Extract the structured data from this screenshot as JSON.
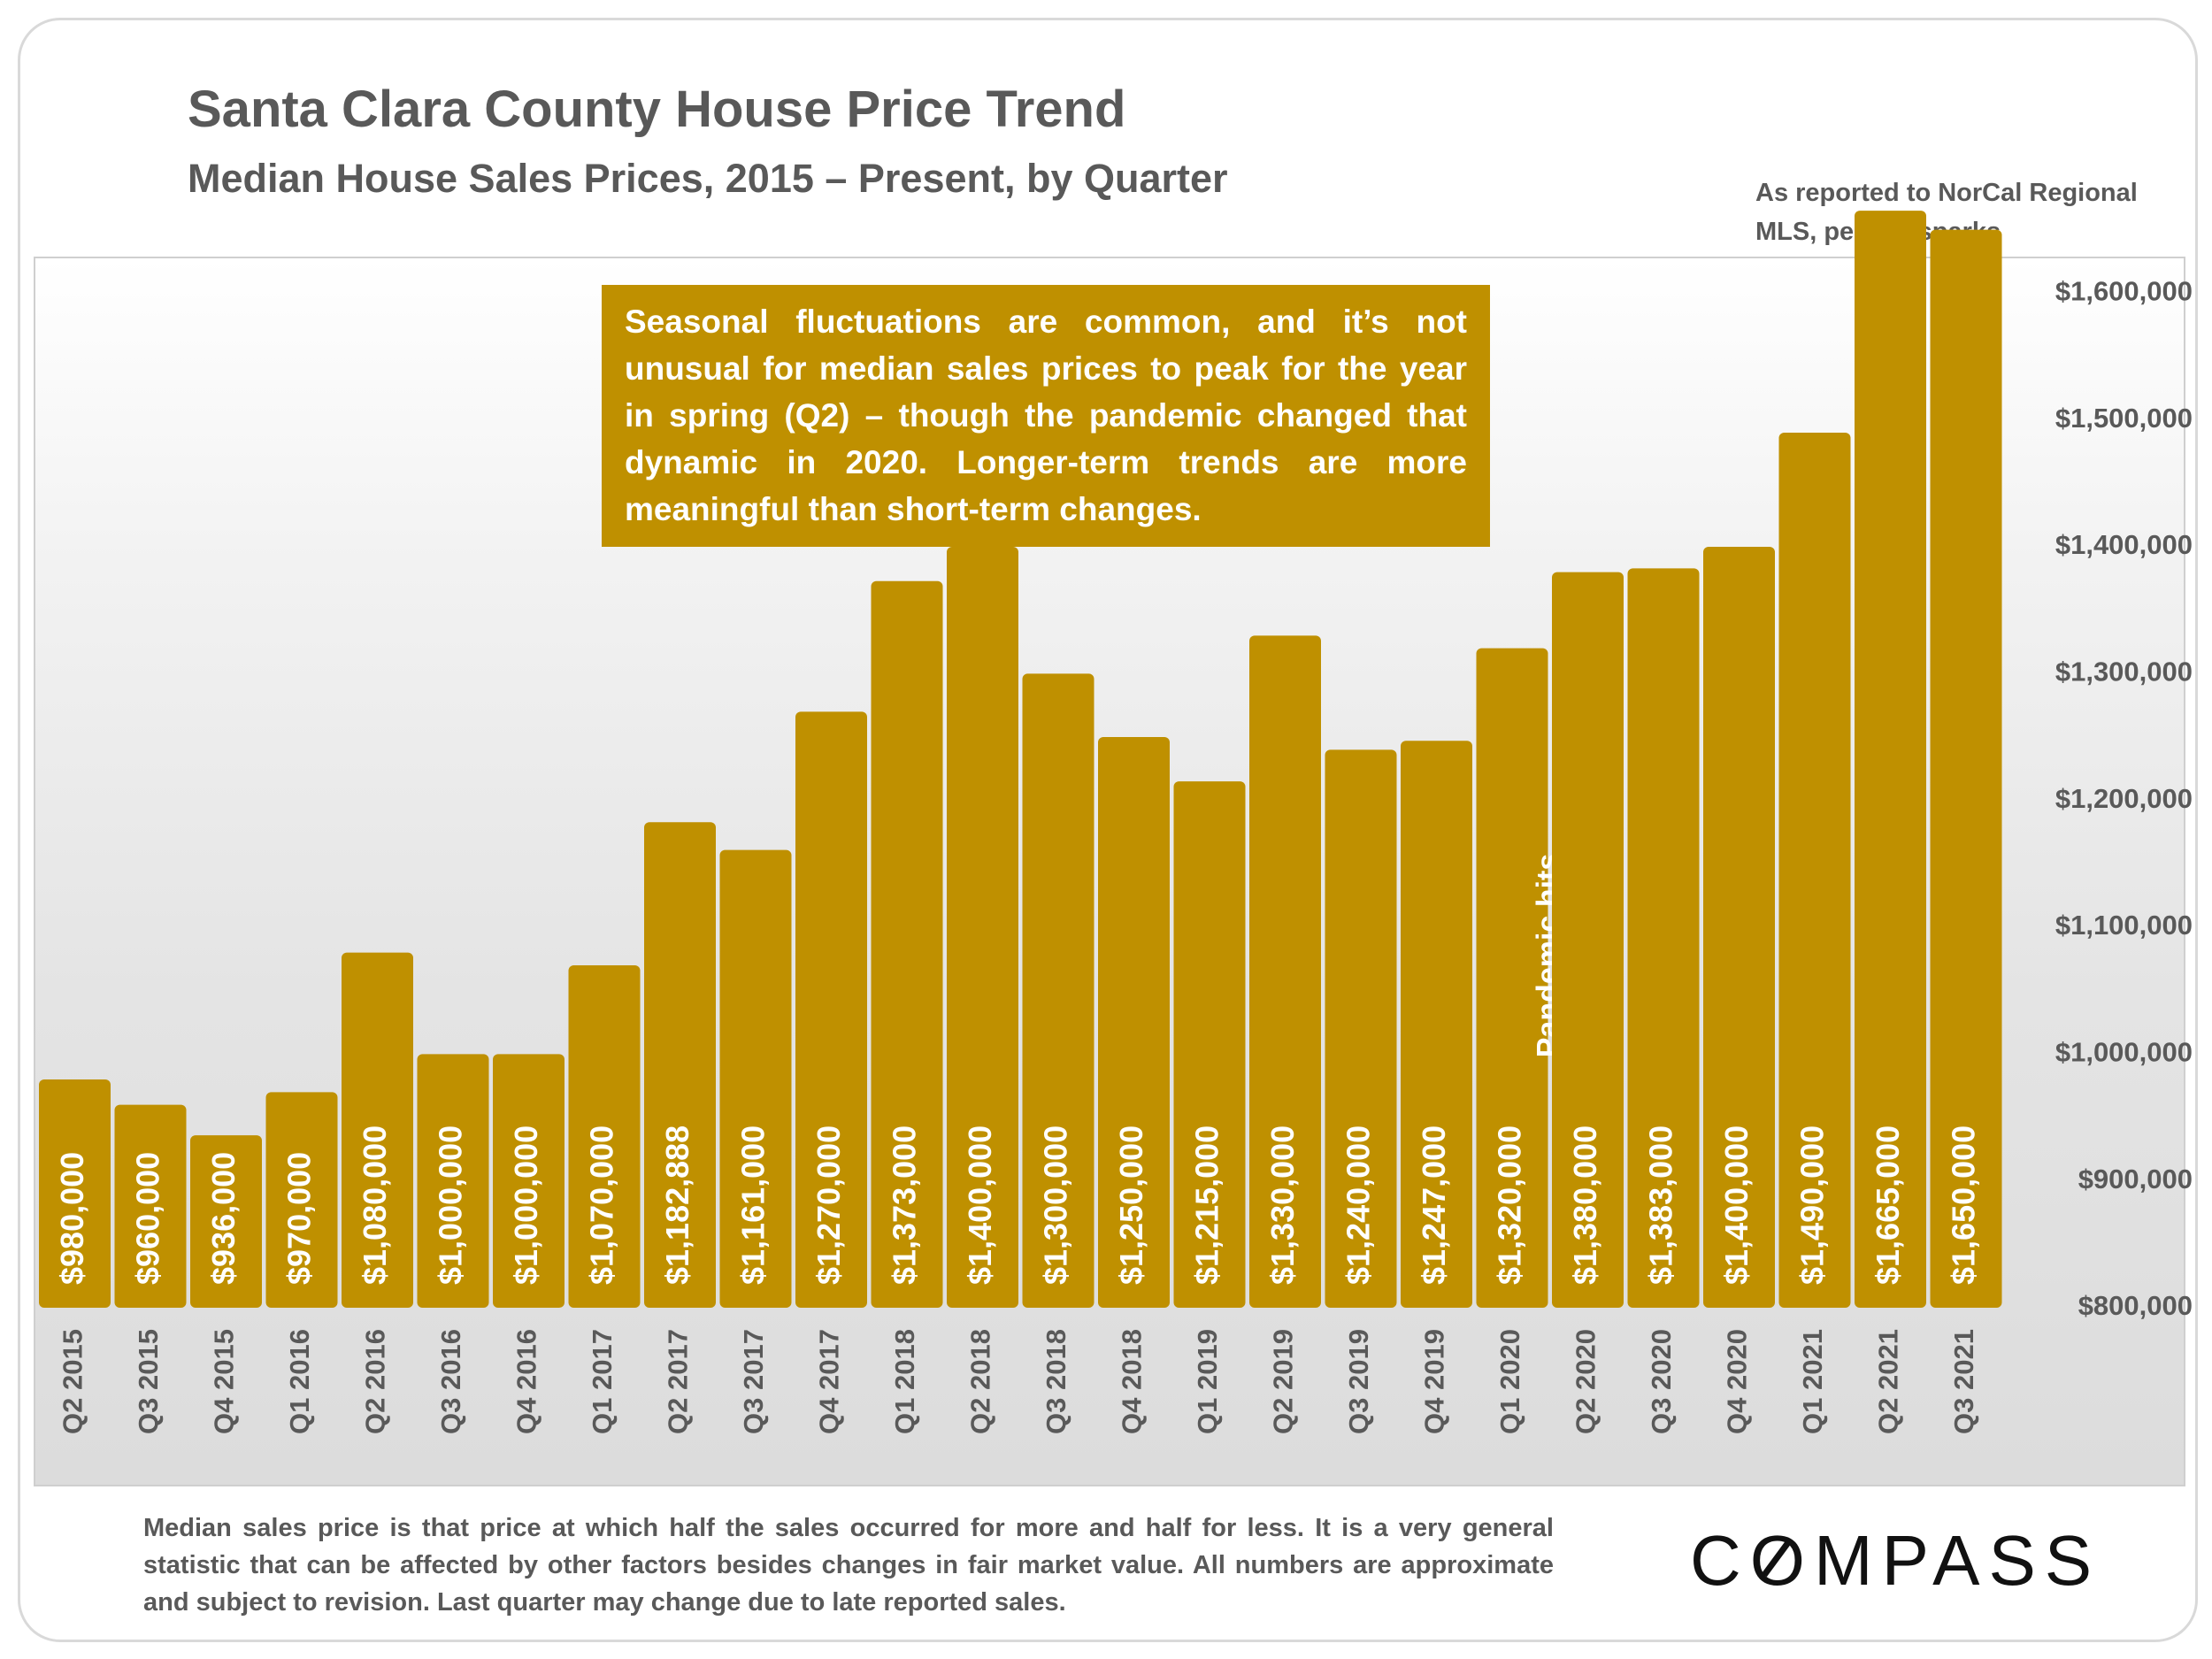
{
  "header": {
    "title": "Santa Clara County House Price Trend",
    "subtitle": "Median House Sales Prices, 2015 – Present, by Quarter",
    "source": "As reported to NorCal Regional MLS, per Infosparks"
  },
  "callout": "Seasonal fluctuations are common, and it’s not unusual for median sales prices to peak for the year in spring (Q2) – though the pandemic changed that dynamic in 2020. Longer-term trends are more meaningful than short-term changes.",
  "footnote": "Median sales price is that price at which half the sales occurred for more and half for less. It is a very general statistic that can be affected by other factors besides changes in fair market value. All numbers are approximate and subject to revision. Last quarter may change due to late reported sales.",
  "logo": "COMPASS",
  "colors": {
    "bar": "#bf9000",
    "text": "#595959",
    "label": "#ffffff"
  },
  "chart_data": {
    "type": "bar",
    "title": "Santa Clara County House Price Trend",
    "subtitle": "Median House Sales Prices, 2015 – Present, by Quarter",
    "categories": [
      "Q2 2015",
      "Q3 2015",
      "Q4 2015",
      "Q1 2016",
      "Q2 2016",
      "Q3 2016",
      "Q4 2016",
      "Q1 2017",
      "Q2 2017",
      "Q3 2017",
      "Q4 2017",
      "Q1 2018",
      "Q2 2018",
      "Q3 2018",
      "Q4 2018",
      "Q1 2019",
      "Q2 2019",
      "Q3 2019",
      "Q4 2019",
      "Q1 2020",
      "Q2 2020",
      "Q3 2020",
      "Q4 2020",
      "Q1 2021",
      "Q2 2021",
      "Q3 2021"
    ],
    "values": [
      980000,
      960000,
      936000,
      970000,
      1080000,
      1000000,
      1000000,
      1070000,
      1182888,
      1161000,
      1270000,
      1373000,
      1400000,
      1300000,
      1250000,
      1215000,
      1330000,
      1240000,
      1247000,
      1320000,
      1380000,
      1383000,
      1400000,
      1490000,
      1665000,
      1650000
    ],
    "value_labels": [
      "$980,000",
      "$960,000",
      "$936,000",
      "$970,000",
      "$1,080,000",
      "$1,000,000",
      "$1,000,000",
      "$1,070,000",
      "$1,182,888",
      "$1,161,000",
      "$1,270,000",
      "$1,373,000",
      "$1,400,000",
      "$1,300,000",
      "$1,250,000",
      "$1,215,000",
      "$1,330,000",
      "$1,240,000",
      "$1,247,000",
      "$1,320,000",
      "$1,380,000",
      "$1,383,000",
      "$1,400,000",
      "$1,490,000",
      "$1,665,000",
      "$1,650,000"
    ],
    "ylim": [
      800000,
      1700000
    ],
    "yticks": [
      "$800,000",
      "$900,000",
      "$1,000,000",
      "$1,100,000",
      "$1,200,000",
      "$1,300,000",
      "$1,400,000",
      "$1,500,000",
      "$1,600,000"
    ],
    "ytick_values": [
      800000,
      900000,
      1000000,
      1100000,
      1200000,
      1300000,
      1400000,
      1500000,
      1600000
    ],
    "y_axis_side": "right",
    "grid": false,
    "legend": "none",
    "annotations": [
      {
        "text": "Pandemic hits",
        "at": "Q1 2020"
      }
    ]
  }
}
